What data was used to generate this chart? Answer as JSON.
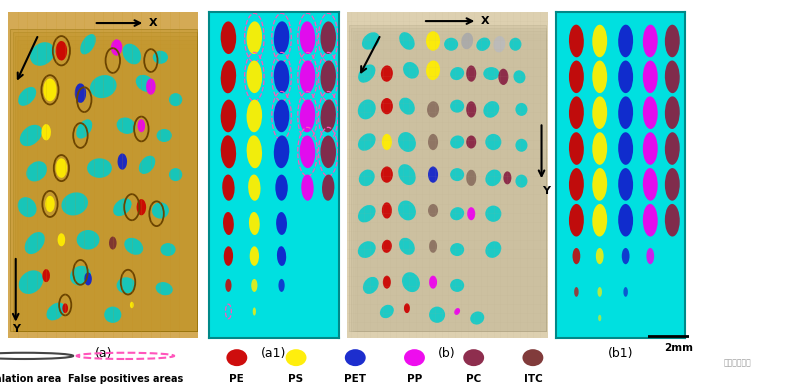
{
  "fig_width": 8.1,
  "fig_height": 3.88,
  "dpi": 100,
  "bg_color": "#ffffff",
  "cyan_bg": "#00E0E0",
  "gold_bg": "#D4AA55",
  "sand_bg": "#DDD0B0",
  "panel_labels": [
    "(a)",
    "(a1)",
    "(b)",
    "(b1)"
  ],
  "colors": {
    "red": "#CC0000",
    "yellow": "#FFEE00",
    "blue": "#1122CC",
    "magenta": "#EE00EE",
    "darkred": "#882244",
    "brown": "#7A3030",
    "cyan": "#00CCCC",
    "halation": "#6B4400",
    "pink_dashed": "#FF55BB",
    "gold_layer": "#C49830",
    "sand_layer": "#C8B888"
  },
  "scale_bar_label": "2mm",
  "legend": {
    "halation_label": "Halation area",
    "fp_label": "False positives areas",
    "types": [
      "PE",
      "PS",
      "PET",
      "PP",
      "PC",
      "ITC"
    ],
    "type_colors": [
      "#CC0000",
      "#FFEE00",
      "#1122CC",
      "#EE00EE",
      "#882244",
      "#7A3030"
    ]
  }
}
